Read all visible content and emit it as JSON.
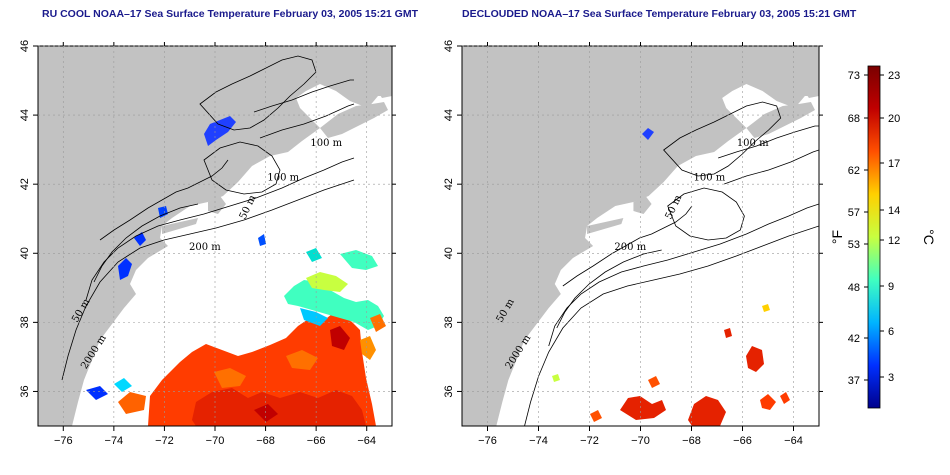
{
  "panels": [
    {
      "id": "left",
      "title": "RU COOL NOAA–17 Sea Surface Temperature February 03, 2005 15:21 GMT"
    },
    {
      "id": "right",
      "title": "DECLOUDED NOAA–17 Sea Surface Temperature February 03, 2005 15:21 GMT"
    }
  ],
  "axes": {
    "x_ticks": [
      -76,
      -74,
      -72,
      -70,
      -68,
      -66,
      -64
    ],
    "x_tick_labels": [
      "−76",
      "−74",
      "−72",
      "−70",
      "−68",
      "−66",
      "−64"
    ],
    "y_ticks": [
      36,
      38,
      40,
      42,
      44,
      46
    ],
    "y_tick_labels": [
      "36",
      "38",
      "40",
      "42",
      "44",
      "46"
    ],
    "xlim": [
      -77,
      -63
    ],
    "ylim": [
      35,
      46
    ]
  },
  "contour_labels": [
    {
      "text": "100 m",
      "lon": -65.6,
      "lat": 43.1
    },
    {
      "text": "100 m",
      "lon": -67.3,
      "lat": 42.1
    },
    {
      "text": "50 m",
      "lon": -68.6,
      "lat": 41.3
    },
    {
      "text": "200 m",
      "lon": -70.4,
      "lat": 40.1
    },
    {
      "text": "50 m",
      "lon": -75.2,
      "lat": 38.3
    },
    {
      "text": "2000 m",
      "lon": -74.7,
      "lat": 37.1
    }
  ],
  "colorbar": {
    "f_label": "°F",
    "c_label": "°C",
    "f_ticks": [
      "73",
      "68",
      "62",
      "57",
      "53",
      "48",
      "42",
      "37"
    ],
    "c_ticks": [
      "23",
      "20",
      "17",
      "14",
      "12",
      "9",
      "6",
      "3"
    ],
    "colors": [
      "#00008c",
      "#0030ff",
      "#00b4ff",
      "#40ffc0",
      "#c8ff40",
      "#ffd000",
      "#ff5000",
      "#c00000",
      "#7a0000"
    ]
  },
  "colors": {
    "land": "#c2c2c2",
    "ocean": "#ffffff",
    "title": "#1a1a8c"
  }
}
